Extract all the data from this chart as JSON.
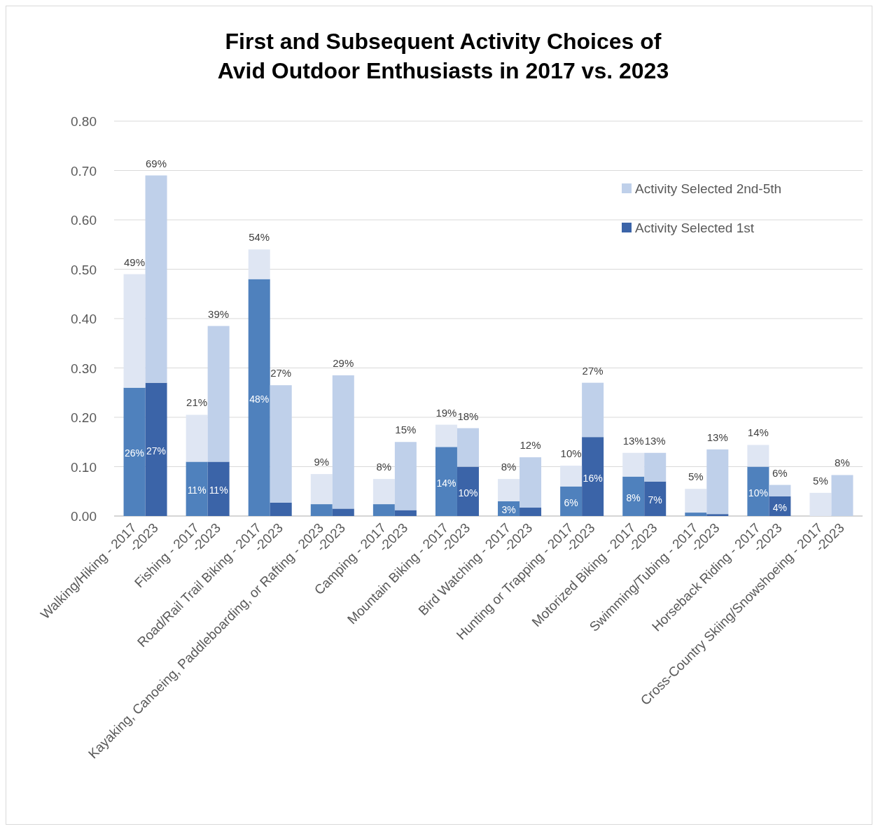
{
  "chart_data": {
    "type": "bar",
    "stacked": true,
    "title": "First and Subsequent Activity Choices of\nAvid Outdoor Enthusiasts in 2017 vs. 2023",
    "categories": [
      "Walking/Hiking - 2017",
      "-2023",
      "Fishing - 2017",
      "-2023",
      "Road/Rail Trail Biking - 2017",
      "-2023",
      "Kayaking, Canoeing, Paddleboarding, or Rafting - 2023",
      "-2023",
      "Camping - 2017",
      "-2023",
      "Mountain Biking - 2017",
      "-2023",
      "Bird Watching - 2017",
      "-2023",
      "Hunting or Trapping - 2017",
      "-2023",
      "Motorized Biking - 2017",
      "-2023",
      "Swimming/Tubing - 2017",
      "-2023",
      "Horseback Riding - 2017",
      "-2023",
      "Cross-Country Skiing/Snowshoeing - 2017",
      "-2023"
    ],
    "series": [
      {
        "name": "Activity Selected 1st",
        "color": "#3b64a8",
        "colors": [
          "#4f81bd",
          "#3b64a8",
          "#4f81bd",
          "#3b64a8",
          "#4f81bd",
          "#3b64a8",
          "#4f81bd",
          "#3b64a8",
          "#4f81bd",
          "#3b64a8",
          "#4f81bd",
          "#3b64a8",
          "#4f81bd",
          "#3b64a8",
          "#4f81bd",
          "#3b64a8",
          "#4f81bd",
          "#3b64a8",
          "#4f81bd",
          "#3b64a8",
          "#4f81bd",
          "#3b64a8",
          "#4f81bd",
          "#3b64a8"
        ],
        "values": [
          0.26,
          0.27,
          0.11,
          0.11,
          0.48,
          0.027,
          0.024,
          0.015,
          0.024,
          0.012,
          0.14,
          0.1,
          0.03,
          0.017,
          0.06,
          0.16,
          0.08,
          0.07,
          0.007,
          0.004,
          0.1,
          0.04,
          0,
          0
        ],
        "value_labels": [
          "26%",
          "27%",
          "11%",
          "11%",
          "48%",
          null,
          null,
          null,
          null,
          null,
          "14%",
          "10%",
          "3%",
          null,
          "6%",
          "16%",
          "8%",
          "7%",
          null,
          null,
          "10%",
          "4%",
          null,
          null
        ]
      },
      {
        "name": "Activity Selected 2nd-5th",
        "color": "#bfd0ea",
        "colors": [
          "#dfe6f3",
          "#bfd0ea",
          "#dfe6f3",
          "#bfd0ea",
          "#dfe6f3",
          "#bfd0ea",
          "#dfe6f3",
          "#bfd0ea",
          "#dfe6f3",
          "#bfd0ea",
          "#dfe6f3",
          "#bfd0ea",
          "#dfe6f3",
          "#bfd0ea",
          "#dfe6f3",
          "#bfd0ea",
          "#dfe6f3",
          "#bfd0ea",
          "#dfe6f3",
          "#bfd0ea",
          "#dfe6f3",
          "#bfd0ea",
          "#dfe6f3",
          "#bfd0ea"
        ],
        "values": [
          0.23,
          0.42,
          0.095,
          0.275,
          0.06,
          0.238,
          0.061,
          0.27,
          0.051,
          0.138,
          0.045,
          0.078,
          0.045,
          0.102,
          0.042,
          0.11,
          0.048,
          0.058,
          0.048,
          0.131,
          0.044,
          0.023,
          0.047,
          0.083
        ]
      }
    ],
    "totals": [
      "49%",
      "69%",
      "21%",
      "39%",
      "54%",
      "27%",
      "9%",
      "29%",
      "8%",
      "15%",
      "19%",
      "18%",
      "8%",
      "12%",
      "10%",
      "27%",
      "13%",
      "13%",
      "5%",
      "13%",
      "14%",
      "6%",
      "5%",
      "8%"
    ],
    "ylim": [
      0,
      0.8
    ],
    "yticks": [
      {
        "value": 0,
        "label": "0.00"
      },
      {
        "value": 0.1,
        "label": "0.10"
      },
      {
        "value": 0.2,
        "label": "0.20"
      },
      {
        "value": 0.3,
        "label": "0.30"
      },
      {
        "value": 0.4,
        "label": "0.40"
      },
      {
        "value": 0.5,
        "label": "0.50"
      },
      {
        "value": 0.6,
        "label": "0.60"
      },
      {
        "value": 0.7,
        "label": "0.70"
      },
      {
        "value": 0.8,
        "label": "0.80"
      }
    ],
    "grid": "y",
    "legend": "top right"
  }
}
